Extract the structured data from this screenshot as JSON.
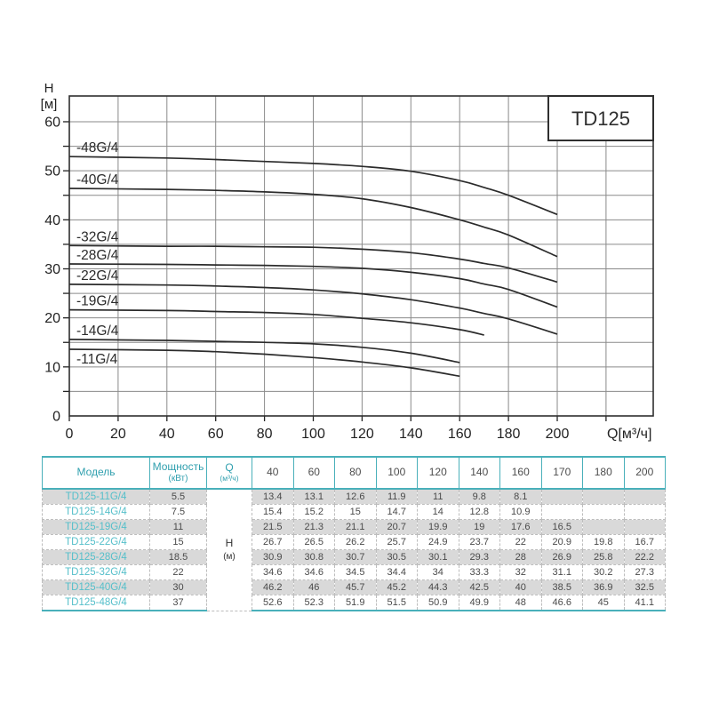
{
  "colors": {
    "table_accent": "#49b0ba",
    "header_text": "#2f9fae",
    "model_text": "#55bfca",
    "value_text": "#4a4a4a",
    "row_alt_bg": "#d9d9d9",
    "curve_color": "#2b2b2b",
    "grid_color": "#8a8a8a"
  },
  "chart_data": {
    "type": "line",
    "title": "TD125",
    "xlabel": "Q[м³/ч]",
    "ylabel_line1": "H",
    "ylabel_line2": "[м]",
    "xlim": [
      0,
      240
    ],
    "ylim": [
      0,
      65
    ],
    "x_ticks": [
      0,
      20,
      40,
      60,
      80,
      100,
      120,
      140,
      160,
      180,
      200
    ],
    "x_grid_step": 20,
    "x_grid_max": 220,
    "y_tick_labels": [
      0,
      10,
      20,
      30,
      40,
      50,
      60
    ],
    "y_grid_step": 5,
    "grid": true,
    "legend_position": "curve-labels-left",
    "series": [
      {
        "name": "-48G/4",
        "label_side": "above",
        "points": [
          [
            0,
            52.9
          ],
          [
            40,
            52.6
          ],
          [
            60,
            52.3
          ],
          [
            80,
            51.9
          ],
          [
            100,
            51.5
          ],
          [
            120,
            50.9
          ],
          [
            140,
            49.9
          ],
          [
            160,
            48
          ],
          [
            170,
            46.6
          ],
          [
            180,
            45
          ],
          [
            200,
            41.1
          ]
        ]
      },
      {
        "name": "-40G/4",
        "label_side": "above",
        "points": [
          [
            0,
            46.4
          ],
          [
            40,
            46.2
          ],
          [
            60,
            46
          ],
          [
            80,
            45.7
          ],
          [
            100,
            45.2
          ],
          [
            120,
            44.3
          ],
          [
            140,
            42.5
          ],
          [
            160,
            40
          ],
          [
            170,
            38.5
          ],
          [
            180,
            36.9
          ],
          [
            200,
            32.5
          ]
        ]
      },
      {
        "name": "-32G/4",
        "label_side": "above",
        "points": [
          [
            0,
            34.75
          ],
          [
            40,
            34.6
          ],
          [
            60,
            34.6
          ],
          [
            80,
            34.5
          ],
          [
            100,
            34.4
          ],
          [
            120,
            34
          ],
          [
            140,
            33.3
          ],
          [
            160,
            32
          ],
          [
            170,
            31.1
          ],
          [
            180,
            30.2
          ],
          [
            200,
            27.3
          ]
        ]
      },
      {
        "name": "-28G/4",
        "label_side": "above",
        "points": [
          [
            0,
            31.0
          ],
          [
            40,
            30.9
          ],
          [
            60,
            30.8
          ],
          [
            80,
            30.7
          ],
          [
            100,
            30.5
          ],
          [
            120,
            30.1
          ],
          [
            140,
            29.3
          ],
          [
            160,
            28
          ],
          [
            170,
            26.9
          ],
          [
            180,
            25.8
          ],
          [
            200,
            22.2
          ]
        ]
      },
      {
        "name": "-22G/4",
        "label_side": "above",
        "points": [
          [
            0,
            26.85
          ],
          [
            40,
            26.7
          ],
          [
            60,
            26.5
          ],
          [
            80,
            26.2
          ],
          [
            100,
            25.7
          ],
          [
            120,
            24.9
          ],
          [
            140,
            23.7
          ],
          [
            160,
            22
          ],
          [
            170,
            20.9
          ],
          [
            180,
            19.8
          ],
          [
            200,
            16.7
          ]
        ]
      },
      {
        "name": "-19G/4",
        "label_side": "above",
        "points": [
          [
            0,
            21.65
          ],
          [
            40,
            21.5
          ],
          [
            60,
            21.3
          ],
          [
            80,
            21.1
          ],
          [
            100,
            20.7
          ],
          [
            120,
            19.9
          ],
          [
            140,
            19
          ],
          [
            160,
            17.6
          ],
          [
            170,
            16.5
          ]
        ]
      },
      {
        "name": "-14G/4",
        "label_side": "above",
        "points": [
          [
            0,
            15.6
          ],
          [
            40,
            15.4
          ],
          [
            60,
            15.2
          ],
          [
            80,
            15
          ],
          [
            100,
            14.7
          ],
          [
            120,
            14
          ],
          [
            140,
            12.8
          ],
          [
            160,
            10.9
          ]
        ]
      },
      {
        "name": "-11G/4",
        "label_side": "below",
        "points": [
          [
            0,
            13.6
          ],
          [
            40,
            13.4
          ],
          [
            60,
            13.1
          ],
          [
            80,
            12.6
          ],
          [
            100,
            11.9
          ],
          [
            120,
            11
          ],
          [
            140,
            9.8
          ],
          [
            160,
            8.1
          ]
        ]
      }
    ]
  },
  "table": {
    "headers": {
      "model": "Модель",
      "power_line1": "Мощность",
      "power_line2": "(кВт)",
      "q_line1": "Q",
      "q_line2": "(м³/ч)",
      "flow_columns": [
        "40",
        "60",
        "80",
        "100",
        "120",
        "140",
        "160",
        "170",
        "180",
        "200"
      ]
    },
    "unit_cell": {
      "line1": "Н",
      "line2": "(м)"
    },
    "rows": [
      {
        "model": "TD125-11G/4",
        "power": "5.5",
        "values": [
          "13.4",
          "13.1",
          "12.6",
          "11.9",
          "11",
          "9.8",
          "8.1",
          "",
          "",
          ""
        ]
      },
      {
        "model": "TD125-14G/4",
        "power": "7.5",
        "values": [
          "15.4",
          "15.2",
          "15",
          "14.7",
          "14",
          "12.8",
          "10.9",
          "",
          "",
          ""
        ]
      },
      {
        "model": "TD125-19G/4",
        "power": "11",
        "values": [
          "21.5",
          "21.3",
          "21.1",
          "20.7",
          "19.9",
          "19",
          "17.6",
          "16.5",
          "",
          ""
        ]
      },
      {
        "model": "TD125-22G/4",
        "power": "15",
        "values": [
          "26.7",
          "26.5",
          "26.2",
          "25.7",
          "24.9",
          "23.7",
          "22",
          "20.9",
          "19.8",
          "16.7"
        ]
      },
      {
        "model": "TD125-28G/4",
        "power": "18.5",
        "values": [
          "30.9",
          "30.8",
          "30.7",
          "30.5",
          "30.1",
          "29.3",
          "28",
          "26.9",
          "25.8",
          "22.2"
        ]
      },
      {
        "model": "TD125-32G/4",
        "power": "22",
        "values": [
          "34.6",
          "34.6",
          "34.5",
          "34.4",
          "34",
          "33.3",
          "32",
          "31.1",
          "30.2",
          "27.3"
        ]
      },
      {
        "model": "TD125-40G/4",
        "power": "30",
        "values": [
          "46.2",
          "46",
          "45.7",
          "45.2",
          "44.3",
          "42.5",
          "40",
          "38.5",
          "36.9",
          "32.5"
        ]
      },
      {
        "model": "TD125-48G/4",
        "power": "37",
        "values": [
          "52.6",
          "52.3",
          "51.9",
          "51.5",
          "50.9",
          "49.9",
          "48",
          "46.6",
          "45",
          "41.1"
        ]
      }
    ]
  }
}
